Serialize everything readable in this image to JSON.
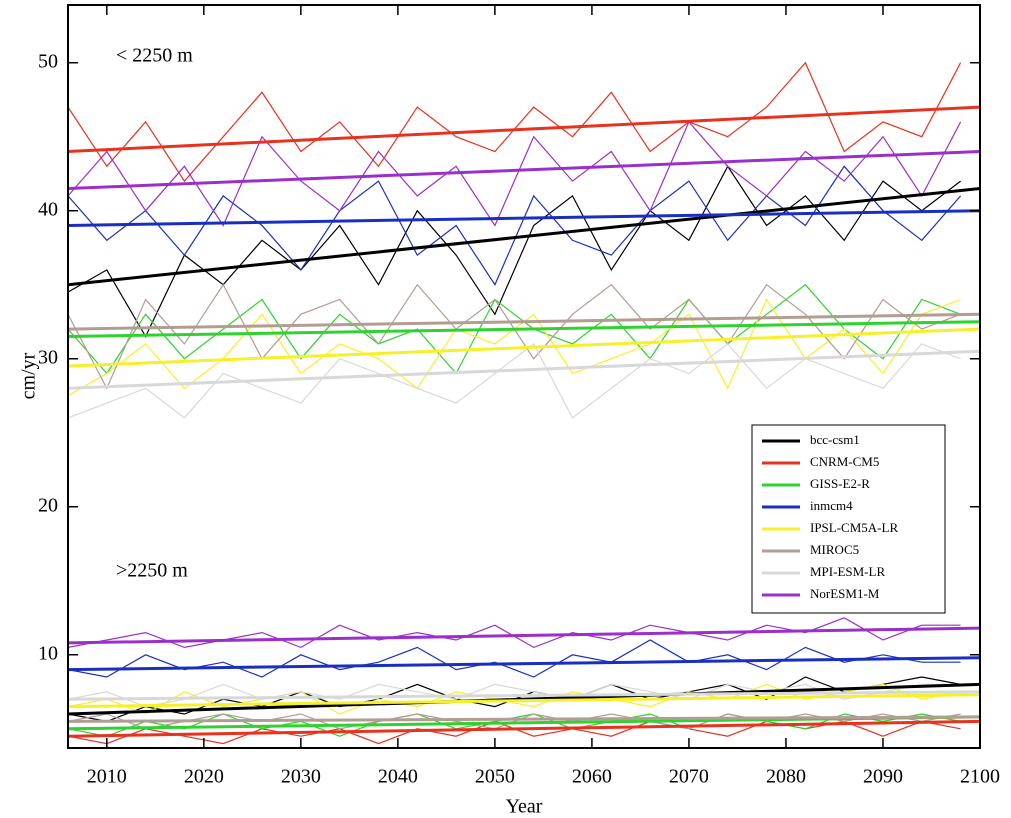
{
  "chart_data": {
    "type": "line",
    "xlabel": "Year",
    "ylabel": "cm/yr",
    "annotations": [
      "< 2250 m",
      ">2250 m"
    ],
    "xlim": [
      2006,
      2100
    ],
    "ylim": [
      3.7,
      53.9
    ],
    "xticks": [
      2010,
      2020,
      2030,
      2040,
      2050,
      2060,
      2070,
      2080,
      2090,
      2100
    ],
    "yticks": [
      10,
      20,
      30,
      40,
      50
    ],
    "legend": "lower-right",
    "x": [
      2006,
      2010,
      2014,
      2018,
      2022,
      2026,
      2030,
      2034,
      2038,
      2042,
      2046,
      2050,
      2054,
      2058,
      2062,
      2066,
      2070,
      2074,
      2078,
      2082,
      2086,
      2090,
      2094,
      2098
    ],
    "trend_x": [
      2006,
      2100
    ],
    "series": [
      {
        "name": "bcc-csm1",
        "color": "#000000",
        "values": [
          34.5,
          36,
          31.5,
          37,
          35,
          38,
          36,
          39,
          35,
          40,
          37,
          33,
          39,
          41,
          36,
          40,
          38,
          43,
          39,
          41,
          38,
          42,
          40,
          42
        ],
        "trend": [
          35,
          41.5
        ],
        "deep_values": [
          6,
          5.5,
          6.5,
          6,
          7,
          6.5,
          7.5,
          6.5,
          7,
          8,
          7,
          6.5,
          7.5,
          7,
          8,
          7,
          7.5,
          8,
          7,
          8.5,
          7.5,
          8,
          8.5,
          8
        ],
        "deep_trend": [
          6,
          8
        ]
      },
      {
        "name": "CNRM-CM5",
        "color": "#e8321e",
        "values": [
          47,
          43,
          46,
          42,
          45,
          48,
          44,
          46,
          43,
          47,
          45,
          44,
          47,
          45,
          48,
          44,
          46,
          45,
          47,
          50,
          44,
          46,
          45,
          50
        ],
        "trend": [
          44,
          47
        ],
        "deep_values": [
          4.5,
          4,
          5,
          4.5,
          4,
          5,
          4.5,
          5,
          4,
          5,
          4.5,
          5.5,
          4.5,
          5,
          4.5,
          5.5,
          5,
          4.5,
          5.5,
          5,
          5.5,
          4.5,
          5.5,
          5
        ],
        "deep_trend": [
          4.5,
          5.5
        ]
      },
      {
        "name": "GISS-E2-R",
        "color": "#2fd22f",
        "values": [
          32,
          29,
          33,
          30,
          32,
          34,
          30,
          33,
          31,
          32,
          29,
          34,
          32,
          31,
          33,
          30,
          34,
          31,
          33,
          35,
          32,
          30,
          34,
          33
        ],
        "trend": [
          31.5,
          32.5
        ],
        "deep_values": [
          5,
          4.5,
          5.5,
          5,
          6,
          5,
          5.5,
          4.5,
          5.5,
          6,
          5,
          5.5,
          6,
          5,
          5.5,
          6,
          5,
          6,
          5.5,
          5,
          6,
          5.5,
          6,
          5.5
        ],
        "deep_trend": [
          5,
          5.8
        ]
      },
      {
        "name": "inmcm4",
        "color": "#1a2fbf",
        "values": [
          41,
          38,
          40,
          37,
          41,
          39,
          36,
          40,
          42,
          37,
          39,
          35,
          41,
          38,
          37,
          40,
          42,
          38,
          41,
          39,
          43,
          40,
          38,
          41
        ],
        "trend": [
          39,
          40
        ],
        "deep_values": [
          9,
          8.5,
          10,
          9,
          9.5,
          8.5,
          10,
          9,
          9.5,
          10.5,
          9,
          9.5,
          8.5,
          10,
          9.5,
          11,
          9.5,
          10,
          9,
          10.5,
          9.5,
          10,
          9.5,
          9.5
        ],
        "deep_trend": [
          9,
          9.8
        ]
      },
      {
        "name": "IPSL-CM5A-LR",
        "color": "#f5f02a",
        "values": [
          27.5,
          29,
          31,
          28,
          30,
          33,
          29,
          31,
          30,
          28,
          32,
          31,
          33,
          29,
          30,
          31,
          33,
          28,
          34,
          30,
          32,
          29,
          33,
          34
        ],
        "trend": [
          29.5,
          32
        ],
        "deep_values": [
          6.5,
          7,
          6,
          7.5,
          6.5,
          7,
          7.5,
          6,
          7,
          6.5,
          7.5,
          7,
          6.5,
          7.5,
          7,
          6.5,
          7.5,
          7,
          8,
          7,
          7.5,
          8,
          7,
          7.5
        ],
        "deep_trend": [
          6.5,
          7.3
        ]
      },
      {
        "name": "MIROC5",
        "color": "#b39c94",
        "values": [
          33,
          28,
          34,
          31,
          35,
          30,
          33,
          34,
          31,
          35,
          32,
          34,
          30,
          33,
          35,
          32,
          34,
          31,
          35,
          33,
          30,
          34,
          32,
          33
        ],
        "trend": [
          32,
          33
        ],
        "deep_values": [
          5.5,
          6,
          5,
          5.5,
          6,
          5.5,
          6,
          5,
          5.5,
          6,
          5.5,
          5,
          6,
          5.5,
          6,
          5.5,
          5,
          6,
          5.5,
          6,
          5.5,
          6,
          5.5,
          6
        ],
        "deep_trend": [
          5.5,
          5.8
        ]
      },
      {
        "name": "MPI-ESM-LR",
        "color": "#d8d8d8",
        "values": [
          26,
          27,
          28,
          26,
          29,
          28,
          27,
          30,
          29,
          28,
          27,
          29,
          31,
          26,
          28,
          30,
          29,
          31,
          28,
          30,
          29,
          28,
          31,
          30
        ],
        "trend": [
          28,
          30.5
        ],
        "deep_values": [
          7,
          7.5,
          6.5,
          7,
          8,
          7,
          7.5,
          7,
          8,
          7.5,
          7,
          8,
          7.5,
          7,
          8,
          7.5,
          7,
          8,
          7.5,
          8,
          7,
          7.5,
          8,
          8
        ],
        "deep_trend": [
          7,
          7.5
        ]
      },
      {
        "name": "NorESM1-M",
        "color": "#9b2fc9",
        "values": [
          41,
          44,
          40,
          43,
          39,
          45,
          42,
          40,
          44,
          41,
          43,
          39,
          45,
          42,
          44,
          40,
          46,
          43,
          41,
          44,
          42,
          45,
          41,
          46
        ],
        "trend": [
          41.5,
          44
        ],
        "deep_values": [
          10.5,
          11,
          11.5,
          10.5,
          11,
          11.5,
          10.5,
          12,
          11,
          11.5,
          11,
          12,
          10.5,
          11.5,
          11,
          12,
          11.5,
          11,
          12,
          11.5,
          12.5,
          11,
          12,
          12
        ],
        "deep_trend": [
          10.8,
          11.8
        ]
      }
    ]
  }
}
